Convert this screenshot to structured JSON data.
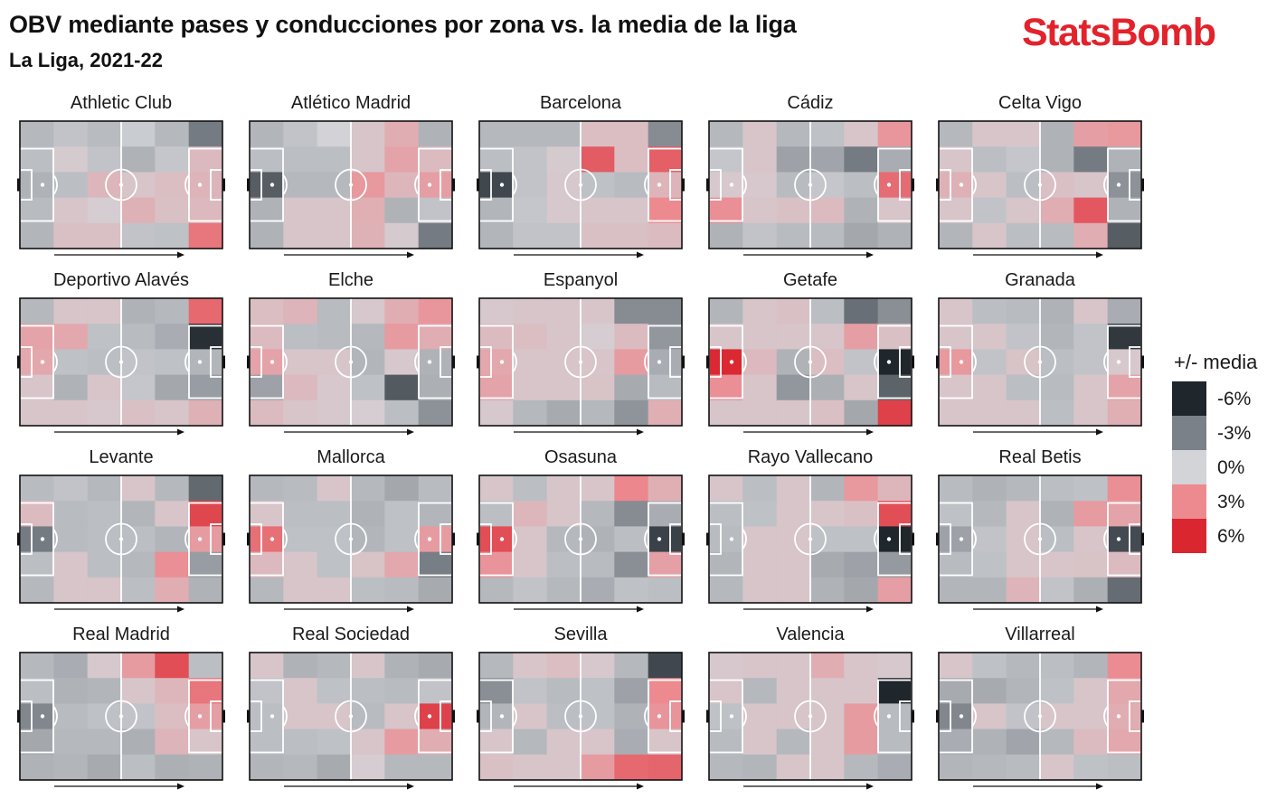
{
  "header": {
    "title": "OBV mediante pases y conducciones por zona vs. la media de la liga",
    "subtitle": "La Liga, 2021-22",
    "logo_text": "StatsBomb"
  },
  "chart_data": {
    "type": "heatmap",
    "title": "OBV mediante pases y conducciones por zona vs. la media de la liga",
    "subtitle": "La Liga, 2021-22",
    "grid": {
      "cols": 6,
      "rows": 5
    },
    "attack_direction": "left-to-right",
    "legend": {
      "title": "+/- media",
      "placement": "right",
      "labels": [
        "-6%",
        "-3%",
        "0%",
        "3%",
        "6%"
      ],
      "values": [
        -6,
        -3,
        0,
        3,
        6
      ],
      "colors": [
        "#1f262c",
        "#7b8188",
        "#d2d4d8",
        "#ec8a90",
        "#d9262f"
      ]
    },
    "panels": [
      {
        "team": "Athletic Club",
        "values": [
          [
            -1,
            -0.6,
            -0.9,
            -0.3,
            -1,
            -3.2
          ],
          [
            -0.8,
            0.4,
            -0.6,
            -1.2,
            -0.5,
            1.1
          ],
          [
            -1.2,
            -0.8,
            1.2,
            0.6,
            0.9,
            1.3
          ],
          [
            -0.9,
            0.6,
            0.3,
            1.4,
            0.8,
            1.1
          ],
          [
            -1.1,
            0.8,
            0.8,
            -0.6,
            -0.7,
            3.6
          ]
        ]
      },
      {
        "team": "Atlético Madrid",
        "values": [
          [
            -1.1,
            -0.6,
            0.1,
            0.6,
            1.6,
            -1.2
          ],
          [
            -0.8,
            -0.8,
            -0.8,
            0.6,
            2,
            1
          ],
          [
            -4.2,
            -1,
            -1,
            2.4,
            1.2,
            2.2
          ],
          [
            -1.2,
            0.6,
            0.6,
            1.5,
            -1.2,
            -0.6
          ],
          [
            -1.2,
            0.6,
            0.6,
            1.4,
            0.4,
            -3.2
          ]
        ]
      },
      {
        "team": "Barcelona",
        "values": [
          [
            -1,
            -1,
            -1,
            0.9,
            0.9,
            -2.6
          ],
          [
            -0.8,
            -0.6,
            0.4,
            4.4,
            0.9,
            4.3
          ],
          [
            -4.9,
            -0.6,
            0.5,
            -0.7,
            -0.9,
            1.3
          ],
          [
            -1.1,
            -0.5,
            0.5,
            0.6,
            0.6,
            3
          ],
          [
            -1.1,
            -0.6,
            -0.6,
            0.8,
            0.8,
            1
          ]
        ]
      },
      {
        "team": "Cádiz",
        "values": [
          [
            -1,
            0.6,
            -1,
            -0.7,
            0.6,
            2.5
          ],
          [
            -0.5,
            0.6,
            -1.8,
            -1.7,
            -3.2,
            -1.4
          ],
          [
            0.5,
            0.5,
            -0.9,
            -0.5,
            -0.8,
            3.9
          ],
          [
            2.8,
            0.6,
            0.8,
            1,
            -1.2,
            0.6
          ],
          [
            -1.2,
            -0.6,
            -0.9,
            -0.9,
            -1.6,
            -1.2
          ]
        ]
      },
      {
        "team": "Celta Vigo",
        "values": [
          [
            -1,
            0.6,
            0.6,
            -1.2,
            2.2,
            2.4
          ],
          [
            0.6,
            -0.8,
            -0.5,
            -1.2,
            -3.2,
            -1.2
          ],
          [
            1.4,
            0.6,
            -0.8,
            0.8,
            0.6,
            -2.4
          ],
          [
            0.6,
            -0.6,
            0.6,
            1.6,
            4.5,
            -1.2
          ],
          [
            -1.1,
            0.6,
            -0.8,
            -0.9,
            1.6,
            -4.2
          ]
        ]
      },
      {
        "team": "Deportivo Alavés",
        "values": [
          [
            -1,
            0.6,
            0.6,
            -1.2,
            -1,
            4
          ],
          [
            2,
            1.8,
            -0.7,
            -0.9,
            -1.4,
            -5.7
          ],
          [
            1.8,
            -0.7,
            -0.8,
            -0.6,
            -0.7,
            -1.1
          ],
          [
            0.6,
            -1.2,
            0.6,
            -0.5,
            -1.6,
            -2
          ],
          [
            0.6,
            0.6,
            0.5,
            0.8,
            0.6,
            1.4
          ]
        ]
      },
      {
        "team": "Elche",
        "values": [
          [
            0.9,
            1.3,
            -0.9,
            0.5,
            1.6,
            2.5
          ],
          [
            1,
            -0.8,
            -0.9,
            -1,
            2.3,
            1.6
          ],
          [
            2,
            0.6,
            0.6,
            -1.1,
            0.5,
            -1.2
          ],
          [
            -1.8,
            1.1,
            0.5,
            -0.7,
            -4.3,
            -1.3
          ],
          [
            1,
            0.6,
            0.5,
            0.3,
            -0.8,
            -2.4
          ]
        ]
      },
      {
        "team": "Espanyol",
        "values": [
          [
            0.5,
            0.6,
            0.6,
            0.6,
            -2.6,
            -2.6
          ],
          [
            1,
            0.9,
            0.6,
            0.3,
            1,
            -2.2
          ],
          [
            1.8,
            0.6,
            0.6,
            0.6,
            2.3,
            -1.4
          ],
          [
            2,
            0.6,
            0.6,
            0.7,
            -1.5,
            -0.9
          ],
          [
            0.5,
            -1,
            -1.5,
            -1,
            -2.3,
            1.5
          ]
        ]
      },
      {
        "team": "Getafe",
        "values": [
          [
            -1.1,
            0.6,
            0.8,
            -0.8,
            -3.6,
            -2.5
          ],
          [
            0.6,
            0.6,
            0.6,
            0.6,
            2.2,
            0.8
          ],
          [
            5.9,
            1.1,
            -1.2,
            0.9,
            -0.6,
            -6
          ],
          [
            2.8,
            0.6,
            -2.2,
            -1.3,
            0.6,
            -4
          ],
          [
            0.6,
            0.6,
            0.6,
            0.8,
            -1.6,
            5.2
          ]
        ]
      },
      {
        "team": "Granada",
        "values": [
          [
            0.6,
            -0.8,
            -0.9,
            -1.2,
            0.6,
            -1.4
          ],
          [
            0.6,
            0.6,
            -0.6,
            -1.1,
            -0.6,
            -5.4
          ],
          [
            2.4,
            -0.6,
            0.7,
            -0.8,
            -0.6,
            0.5
          ],
          [
            0.6,
            0.6,
            -0.8,
            -0.9,
            0.6,
            2
          ],
          [
            0.6,
            0.6,
            0.6,
            -0.8,
            0.6,
            1.5
          ]
        ]
      },
      {
        "team": "Levante",
        "values": [
          [
            -0.9,
            -0.6,
            -1,
            0.6,
            -1,
            -3.8
          ],
          [
            1,
            -0.9,
            -0.8,
            -1.1,
            0.6,
            5
          ],
          [
            -3.2,
            -0.9,
            -0.8,
            -0.8,
            -1.1,
            2.3
          ],
          [
            -0.8,
            0.6,
            -0.8,
            -1,
            2.8,
            -2
          ],
          [
            -1,
            0.6,
            0.6,
            -0.8,
            1.6,
            -1.2
          ]
        ]
      },
      {
        "team": "Mallorca",
        "values": [
          [
            -1,
            -0.9,
            0.6,
            -1,
            -1.6,
            -0.9
          ],
          [
            0.6,
            -0.8,
            -0.8,
            -1.2,
            -0.7,
            -1.1
          ],
          [
            3.8,
            -0.7,
            -0.7,
            -1.1,
            -0.7,
            2.3
          ],
          [
            1.1,
            0.6,
            -0.7,
            0.7,
            1.8,
            -3.1
          ],
          [
            -1,
            0.6,
            0.6,
            -0.8,
            -0.9,
            -1.5
          ]
        ]
      },
      {
        "team": "Osasuna",
        "values": [
          [
            0.6,
            -0.8,
            0.6,
            0.6,
            3.1,
            1.5
          ],
          [
            -0.8,
            1.2,
            0.6,
            -1,
            -2.6,
            -1.4
          ],
          [
            4.8,
            0.6,
            -1,
            -1.2,
            -0.8,
            -5.1
          ],
          [
            2.6,
            0.6,
            -0.8,
            -0.9,
            -2.5,
            2.1
          ],
          [
            -1,
            -0.6,
            -1,
            -1.4,
            -0.7,
            -0.8
          ]
        ]
      },
      {
        "team": "Rayo Vallecano",
        "values": [
          [
            0.6,
            -0.8,
            0.6,
            -1.1,
            2.4,
            1.2
          ],
          [
            -0.8,
            -0.7,
            0.6,
            0.6,
            0.8,
            4.8
          ],
          [
            -0.9,
            0.6,
            0.6,
            -0.7,
            -0.7,
            -6.4
          ],
          [
            -1.1,
            0.6,
            0.6,
            -1.5,
            -1.8,
            -2.1
          ],
          [
            -1,
            0.6,
            0.6,
            -1.2,
            -1.6,
            2.2
          ]
        ]
      },
      {
        "team": "Real Betis",
        "values": [
          [
            -0.9,
            -1.2,
            -1,
            -0.8,
            -0.7,
            2.8
          ],
          [
            -0.7,
            -1,
            0.6,
            -1.2,
            2.3,
            2
          ],
          [
            -1.8,
            -0.6,
            0.6,
            -0.8,
            0.6,
            -4.8
          ],
          [
            -0.9,
            -0.7,
            0.6,
            0.6,
            0.7,
            1
          ],
          [
            -1.1,
            -1.1,
            1.3,
            -0.6,
            -1.3,
            -3.7
          ]
        ]
      },
      {
        "team": "Real Madrid",
        "values": [
          [
            -1,
            -1.4,
            0.5,
            2.3,
            4.8,
            -0.8
          ],
          [
            -0.8,
            -1.2,
            -1.1,
            0.6,
            1.2,
            3.6
          ],
          [
            -2.8,
            -0.9,
            -0.7,
            -0.6,
            0.9,
            2.2
          ],
          [
            -1.6,
            -1,
            -1,
            -1.3,
            1.3,
            0.6
          ],
          [
            -1.2,
            -1.1,
            -1.5,
            -0.8,
            -1.3,
            -1.2
          ]
        ]
      },
      {
        "team": "Real Sociedad",
        "values": [
          [
            0.6,
            -1.2,
            -1,
            0.6,
            -1.2,
            -1.5
          ],
          [
            -0.6,
            0.6,
            -0.7,
            -0.8,
            -0.9,
            -0.6
          ],
          [
            -0.8,
            0.6,
            0.6,
            -0.9,
            0.6,
            5.2
          ],
          [
            -0.8,
            -0.8,
            -0.7,
            0.6,
            2.3,
            1.6
          ],
          [
            -1.1,
            -1,
            -1.5,
            0.3,
            -1,
            -1
          ]
        ]
      },
      {
        "team": "Sevilla",
        "values": [
          [
            -1,
            0.6,
            0.9,
            0.5,
            -1,
            -4.9
          ],
          [
            -2.5,
            -0.6,
            -0.9,
            -0.7,
            -1.8,
            3
          ],
          [
            -1.1,
            0.6,
            -0.8,
            -0.7,
            -1.2,
            2.6
          ],
          [
            0.6,
            -1,
            0.6,
            0.6,
            -1.4,
            0.6
          ],
          [
            0.8,
            0.6,
            0.6,
            2.3,
            4,
            4.1
          ]
        ]
      },
      {
        "team": "Valencia",
        "values": [
          [
            0.5,
            0.6,
            0.6,
            1.6,
            0.6,
            0.5
          ],
          [
            0.6,
            -1,
            0.6,
            0.6,
            0.6,
            -6.3
          ],
          [
            -0.7,
            0.6,
            0.6,
            0.6,
            2.3,
            -0.9
          ],
          [
            -0.9,
            0.6,
            -1,
            0.6,
            2.3,
            -0.9
          ],
          [
            -1,
            -1.1,
            0.6,
            0.6,
            -1,
            -1.4
          ]
        ]
      },
      {
        "team": "Villarreal",
        "values": [
          [
            0.6,
            -0.7,
            -1,
            -0.8,
            -1.1,
            2.9
          ],
          [
            -1.5,
            -1.5,
            -1.1,
            -0.7,
            0.6,
            1.8
          ],
          [
            -2.8,
            0.6,
            -0.6,
            0.6,
            0.6,
            1.6
          ],
          [
            -1.4,
            -1.2,
            -1.7,
            -1,
            1,
            1.8
          ],
          [
            -1.1,
            -1,
            -0.9,
            0.6,
            -0.7,
            -0.8
          ]
        ]
      }
    ]
  }
}
